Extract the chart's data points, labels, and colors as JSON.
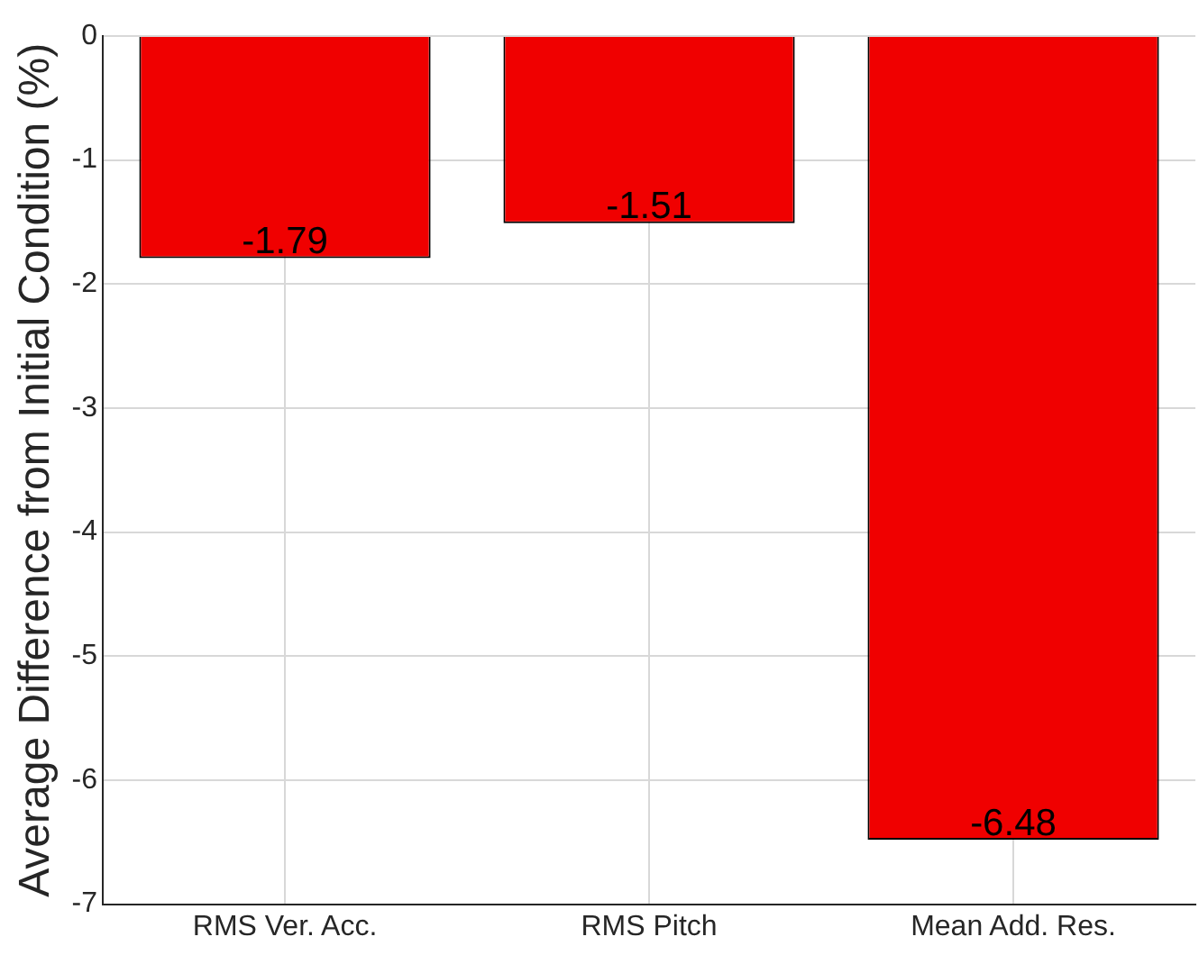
{
  "chart_data": {
    "type": "bar",
    "ylabel": "Average Difference from Initial Condition (%)",
    "categories": [
      "RMS Ver. Acc.",
      "RMS Pitch",
      "Mean Add. Res."
    ],
    "values": [
      -1.79,
      -1.51,
      -6.48
    ],
    "color": "#f00000",
    "ylim": [
      -7,
      0
    ],
    "yticks": [
      -7,
      -6,
      -5,
      -4,
      -3,
      -2,
      -1,
      0
    ],
    "grid": true,
    "data_labels": true
  }
}
